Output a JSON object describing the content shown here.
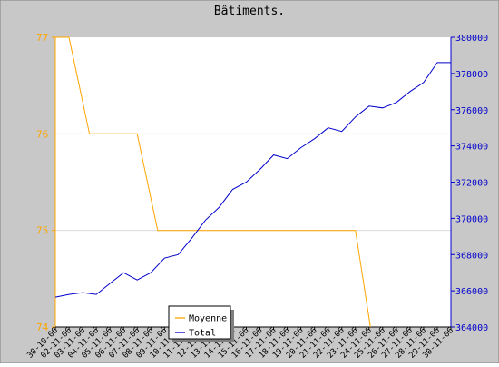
{
  "chart_data": {
    "type": "line",
    "title": "Bâtiments.",
    "x_tick_labels": [
      "30-10-06",
      "02-11-06",
      "03-11-06",
      "04-11-06",
      "05-11-06",
      "06-11-06",
      "07-11-06",
      "08-11-06",
      "09-11-06",
      "10-11-06",
      "11-11-06",
      "12-11-06",
      "13-11-06",
      "14-11-06",
      "15-11-06",
      "16-11-06",
      "17-11-06",
      "18-11-06",
      "19-11-06",
      "20-11-06",
      "21-11-06",
      "22-11-06",
      "23-11-06",
      "24-11-06",
      "25-11-06",
      "26-11-06",
      "27-11-06",
      "28-11-06",
      "29-11-06",
      "30-11-06"
    ],
    "left_axis": {
      "ylim": [
        74,
        77
      ],
      "ticks": [
        74,
        75,
        76,
        77
      ],
      "color": "#ffa500"
    },
    "right_axis": {
      "ylim": [
        364000,
        380000
      ],
      "ticks": [
        364000,
        366000,
        368000,
        370000,
        372000,
        374000,
        376000,
        378000,
        380000
      ],
      "color": "#0000cc"
    },
    "grid": true,
    "legend": {
      "placement": "bottom-left",
      "entries": [
        "Moyenne",
        "Total"
      ]
    },
    "series": [
      {
        "name": "Moyenne",
        "axis": "left",
        "color": "#ffa500",
        "points": [
          [
            0,
            77
          ],
          [
            1,
            77
          ],
          [
            2.5,
            76
          ],
          [
            6,
            76
          ],
          [
            7.5,
            75
          ],
          [
            22,
            75
          ],
          [
            23.1,
            74
          ]
        ]
      },
      {
        "name": "Total",
        "axis": "right",
        "color": "#0000cc",
        "points": [
          [
            0,
            365650
          ],
          [
            1,
            365800
          ],
          [
            2,
            365900
          ],
          [
            3,
            365800
          ],
          [
            4,
            366400
          ],
          [
            5,
            367000
          ],
          [
            6,
            366600
          ],
          [
            7,
            367000
          ],
          [
            8,
            367800
          ],
          [
            9,
            368000
          ],
          [
            10,
            368900
          ],
          [
            11,
            369900
          ],
          [
            12,
            370600
          ],
          [
            13,
            371600
          ],
          [
            14,
            372000
          ],
          [
            15,
            372700
          ],
          [
            16,
            373500
          ],
          [
            17,
            373300
          ],
          [
            18,
            373900
          ],
          [
            19,
            374400
          ],
          [
            20,
            375000
          ],
          [
            21,
            374800
          ],
          [
            22,
            375600
          ],
          [
            23,
            376200
          ],
          [
            24,
            376100
          ],
          [
            25,
            376400
          ],
          [
            26,
            377000
          ],
          [
            27,
            377500
          ],
          [
            28,
            378600
          ],
          [
            29,
            378600
          ]
        ]
      }
    ]
  }
}
